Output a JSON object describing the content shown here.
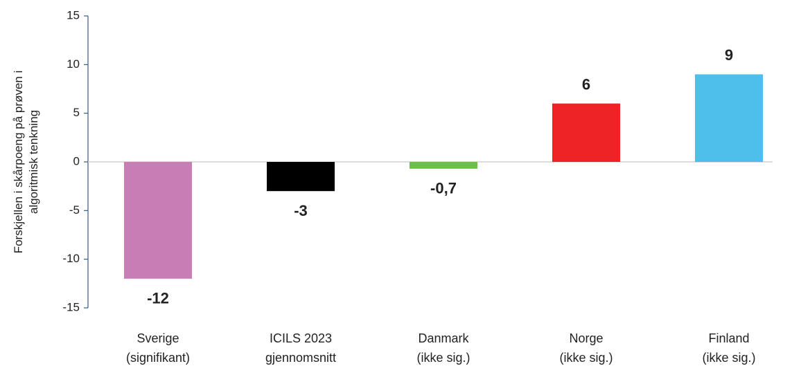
{
  "chart_data": {
    "type": "bar",
    "ylabel": [
      "Forskjellen  i skårpoeng på prøven i",
      "algoritmisk tenkning"
    ],
    "categories": [
      [
        "Sverige",
        "(signifikant)"
      ],
      [
        "ICILS 2023",
        "gjennomsnitt"
      ],
      [
        "Danmark",
        "(ikke sig.)"
      ],
      [
        "Norge",
        "(ikke sig.)"
      ],
      [
        "Finland",
        "(ikke sig.)"
      ]
    ],
    "values": [
      -12,
      -3,
      -0.7,
      6,
      9
    ],
    "value_labels": [
      "-12",
      "-3",
      "-0,7",
      "6",
      "9"
    ],
    "colors": [
      "#c97db5",
      "#000000",
      "#6cc04a",
      "#ee2326",
      "#4dbfea"
    ],
    "ylim": [
      -15,
      15
    ],
    "yticks": [
      -15,
      -10,
      -5,
      0,
      5,
      10,
      15
    ]
  }
}
